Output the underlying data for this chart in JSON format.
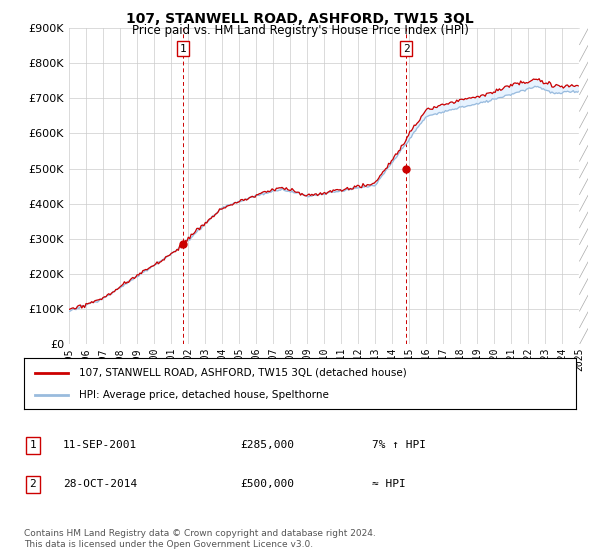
{
  "title": "107, STANWELL ROAD, ASHFORD, TW15 3QL",
  "subtitle": "Price paid vs. HM Land Registry's House Price Index (HPI)",
  "ylim": [
    0,
    900000
  ],
  "xlim_start": 1995.0,
  "xlim_end": 2025.5,
  "purchase1": {
    "date_num": 2001.69,
    "price": 285000,
    "label": "1",
    "date_str": "11-SEP-2001",
    "price_str": "£285,000",
    "hpi_str": "7% ↑ HPI"
  },
  "purchase2": {
    "date_num": 2014.82,
    "price": 500000,
    "label": "2",
    "date_str": "28-OCT-2014",
    "price_str": "£500,000",
    "hpi_str": "≈ HPI"
  },
  "red_line_color": "#cc0000",
  "blue_line_color": "#99bbdd",
  "fill_color": "#ddeeff",
  "grid_color": "#cccccc",
  "annotation_line_color": "#cc0000",
  "legend_entry1": "107, STANWELL ROAD, ASHFORD, TW15 3QL (detached house)",
  "legend_entry2": "HPI: Average price, detached house, Spelthorne",
  "footnote": "Contains HM Land Registry data © Crown copyright and database right 2024.\nThis data is licensed under the Open Government Licence v3.0.",
  "xlabel_years": [
    1995,
    1996,
    1997,
    1998,
    1999,
    2000,
    2001,
    2002,
    2003,
    2004,
    2005,
    2006,
    2007,
    2008,
    2009,
    2010,
    2011,
    2012,
    2013,
    2014,
    2015,
    2016,
    2017,
    2018,
    2019,
    2020,
    2021,
    2022,
    2023,
    2024,
    2025
  ]
}
